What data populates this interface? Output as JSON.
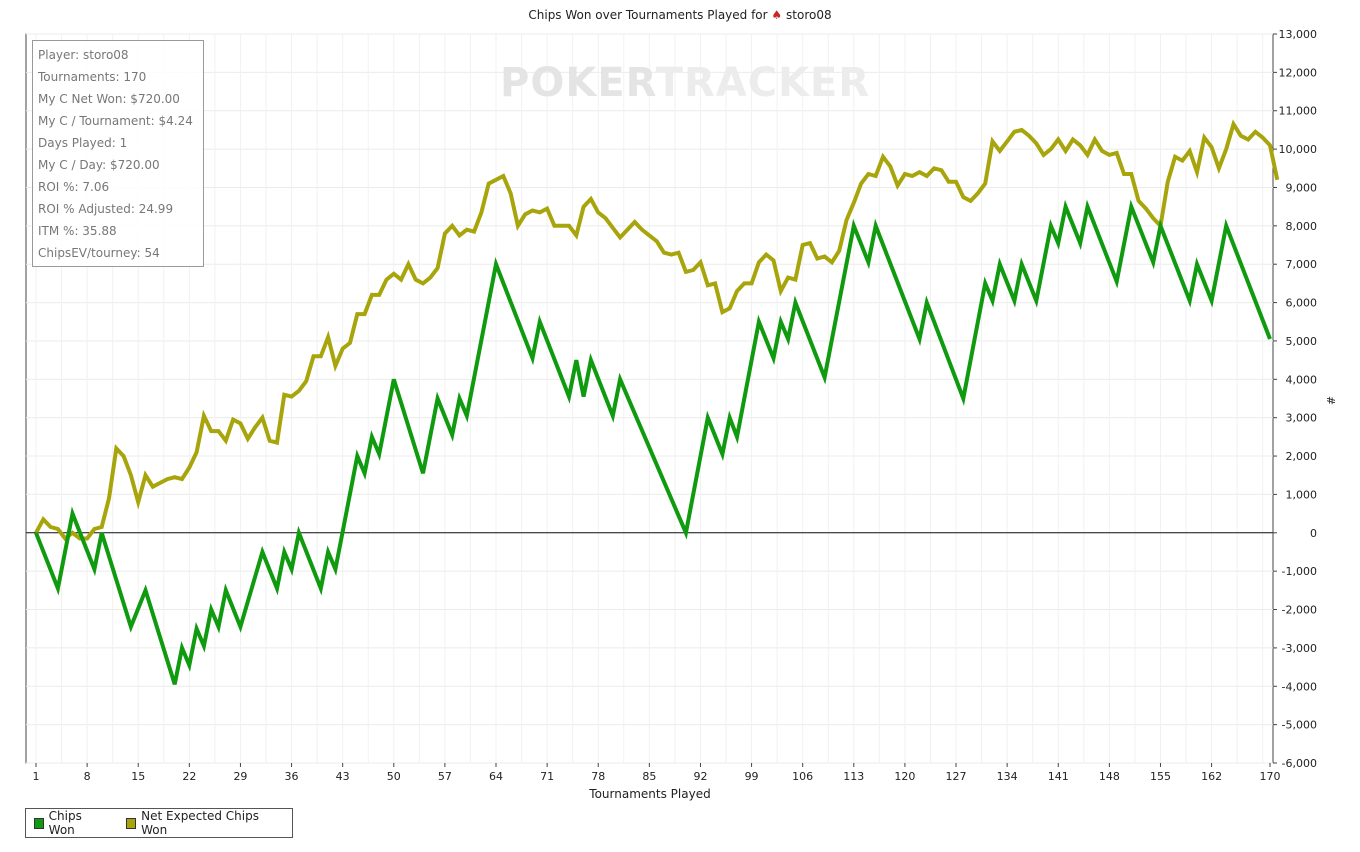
{
  "title": {
    "prefix": "Chips Won over Tournaments Played for",
    "player": "storo08"
  },
  "watermark": {
    "brand_part1": "POKER",
    "brand_part2": "TRACKER"
  },
  "stats": [
    "Player: storo08",
    "Tournaments: 170",
    "My C Net Won: $720.00",
    "My C / Tournament: $4.24",
    "Days Played: 1",
    "My C / Day: $720.00",
    "ROI %: 7.06",
    "ROI % Adjusted: 24.99",
    "ITM %: 35.88",
    "ChipsEV/tourney: 54"
  ],
  "legend": [
    {
      "name": "Chips Won",
      "color": "#0f9a0f"
    },
    {
      "name": "Net Expected Chips Won",
      "color": "#a8a50c"
    }
  ],
  "chart_data": {
    "type": "line",
    "xlabel": "Tournaments Played",
    "ylabel": "#",
    "xlim": [
      1,
      170
    ],
    "ylim": [
      -6000,
      13000
    ],
    "x_ticks": [
      1,
      8,
      15,
      22,
      29,
      36,
      43,
      50,
      57,
      64,
      71,
      78,
      85,
      92,
      99,
      106,
      113,
      120,
      127,
      134,
      141,
      148,
      155,
      162,
      170
    ],
    "y_ticks": [
      -6000,
      -5000,
      -4000,
      -3000,
      -2000,
      -1000,
      0,
      1000,
      2000,
      3000,
      4000,
      5000,
      6000,
      7000,
      8000,
      9000,
      10000,
      11000,
      12000,
      13000
    ],
    "y_tick_labels": [
      "-6,000",
      "-5,000",
      "-4,000",
      "-3,000",
      "-2,000",
      "-1,000",
      "0",
      "1,000",
      "2,000",
      "3,000",
      "4,000",
      "5,000",
      "6,000",
      "7,000",
      "8,000",
      "9,000",
      "10,000",
      "11,000",
      "12,000",
      "13,000"
    ],
    "grid": true,
    "legend_position": "bottom-left",
    "series": [
      {
        "name": "Chips Won",
        "color": "#0f9a0f",
        "points": [
          [
            1,
            0
          ],
          [
            4,
            -1450
          ],
          [
            6,
            500
          ],
          [
            9,
            -950
          ],
          [
            10,
            0
          ],
          [
            14,
            -2450
          ],
          [
            16,
            -1500
          ],
          [
            20,
            -3950
          ],
          [
            21,
            -3000
          ],
          [
            22,
            -3450
          ],
          [
            23,
            -2500
          ],
          [
            24,
            -2950
          ],
          [
            25,
            -2000
          ],
          [
            26,
            -2450
          ],
          [
            27,
            -1500
          ],
          [
            29,
            -2450
          ],
          [
            32,
            -500
          ],
          [
            34,
            -1450
          ],
          [
            35,
            -500
          ],
          [
            36,
            -950
          ],
          [
            37,
            0
          ],
          [
            40,
            -1450
          ],
          [
            41,
            -500
          ],
          [
            42,
            -950
          ],
          [
            45,
            2000
          ],
          [
            46,
            1550
          ],
          [
            47,
            2500
          ],
          [
            48,
            2050
          ],
          [
            50,
            4000
          ],
          [
            54,
            1550
          ],
          [
            56,
            3500
          ],
          [
            58,
            2550
          ],
          [
            59,
            3500
          ],
          [
            60,
            3050
          ],
          [
            64,
            7000
          ],
          [
            69,
            4550
          ],
          [
            70,
            5500
          ],
          [
            74,
            3550
          ],
          [
            75,
            4500
          ],
          [
            76,
            3550
          ],
          [
            77,
            4500
          ],
          [
            80,
            3050
          ],
          [
            81,
            4000
          ],
          [
            90,
            0
          ],
          [
            93,
            3000
          ],
          [
            95,
            2050
          ],
          [
            96,
            3000
          ],
          [
            97,
            2500
          ],
          [
            100,
            5500
          ],
          [
            102,
            4550
          ],
          [
            103,
            5500
          ],
          [
            104,
            5050
          ],
          [
            105,
            6000
          ],
          [
            109,
            4050
          ],
          [
            113,
            8000
          ],
          [
            115,
            7050
          ],
          [
            116,
            8000
          ],
          [
            122,
            5050
          ],
          [
            123,
            6000
          ],
          [
            128,
            3500
          ],
          [
            131,
            6500
          ],
          [
            132,
            6050
          ],
          [
            133,
            7000
          ],
          [
            135,
            6050
          ],
          [
            136,
            7000
          ],
          [
            138,
            6050
          ],
          [
            140,
            8000
          ],
          [
            141,
            7550
          ],
          [
            142,
            8500
          ],
          [
            144,
            7550
          ],
          [
            145,
            8500
          ],
          [
            149,
            6550
          ],
          [
            151,
            8500
          ],
          [
            154,
            7050
          ],
          [
            155,
            8000
          ],
          [
            159,
            6050
          ],
          [
            160,
            7000
          ],
          [
            162,
            6050
          ],
          [
            164,
            8000
          ],
          [
            170,
            5050
          ]
        ]
      },
      {
        "name": "Net Expected Chips Won",
        "color": "#a8a50c",
        "points": [
          [
            1,
            0
          ],
          [
            2,
            350
          ],
          [
            3,
            150
          ],
          [
            4,
            100
          ],
          [
            5,
            -150
          ],
          [
            6,
            0
          ],
          [
            7,
            -150
          ],
          [
            8,
            -150
          ],
          [
            9,
            100
          ],
          [
            10,
            150
          ],
          [
            11,
            900
          ],
          [
            12,
            2200
          ],
          [
            13,
            2000
          ],
          [
            14,
            1500
          ],
          [
            15,
            800
          ],
          [
            16,
            1500
          ],
          [
            17,
            1200
          ],
          [
            18,
            1300
          ],
          [
            19,
            1400
          ],
          [
            20,
            1450
          ],
          [
            21,
            1400
          ],
          [
            22,
            1700
          ],
          [
            23,
            2100
          ],
          [
            24,
            3050
          ],
          [
            25,
            2650
          ],
          [
            26,
            2650
          ],
          [
            27,
            2400
          ],
          [
            28,
            2950
          ],
          [
            29,
            2850
          ],
          [
            30,
            2450
          ],
          [
            31,
            2750
          ],
          [
            32,
            3000
          ],
          [
            33,
            2400
          ],
          [
            34,
            2350
          ],
          [
            35,
            3600
          ],
          [
            36,
            3550
          ],
          [
            37,
            3700
          ],
          [
            38,
            3950
          ],
          [
            39,
            4600
          ],
          [
            40,
            4600
          ],
          [
            41,
            5100
          ],
          [
            42,
            4350
          ],
          [
            43,
            4800
          ],
          [
            44,
            4950
          ],
          [
            45,
            5700
          ],
          [
            46,
            5700
          ],
          [
            47,
            6200
          ],
          [
            48,
            6200
          ],
          [
            49,
            6600
          ],
          [
            50,
            6750
          ],
          [
            51,
            6600
          ],
          [
            52,
            7000
          ],
          [
            53,
            6600
          ],
          [
            54,
            6500
          ],
          [
            55,
            6650
          ],
          [
            56,
            6900
          ],
          [
            57,
            7800
          ],
          [
            58,
            8000
          ],
          [
            59,
            7750
          ],
          [
            60,
            7900
          ],
          [
            61,
            7850
          ],
          [
            62,
            8350
          ],
          [
            63,
            9100
          ],
          [
            64,
            9200
          ],
          [
            65,
            9300
          ],
          [
            66,
            8850
          ],
          [
            67,
            8000
          ],
          [
            68,
            8300
          ],
          [
            69,
            8400
          ],
          [
            70,
            8350
          ],
          [
            71,
            8450
          ],
          [
            72,
            8000
          ],
          [
            73,
            8000
          ],
          [
            74,
            8000
          ],
          [
            75,
            7750
          ],
          [
            76,
            8500
          ],
          [
            77,
            8700
          ],
          [
            78,
            8350
          ],
          [
            79,
            8200
          ],
          [
            80,
            7950
          ],
          [
            81,
            7700
          ],
          [
            82,
            7900
          ],
          [
            83,
            8100
          ],
          [
            84,
            7900
          ],
          [
            85,
            7750
          ],
          [
            86,
            7600
          ],
          [
            87,
            7300
          ],
          [
            88,
            7250
          ],
          [
            89,
            7300
          ],
          [
            90,
            6800
          ],
          [
            91,
            6850
          ],
          [
            92,
            7050
          ],
          [
            93,
            6450
          ],
          [
            94,
            6500
          ],
          [
            95,
            5750
          ],
          [
            96,
            5850
          ],
          [
            97,
            6300
          ],
          [
            98,
            6500
          ],
          [
            99,
            6500
          ],
          [
            100,
            7050
          ],
          [
            101,
            7250
          ],
          [
            102,
            7100
          ],
          [
            103,
            6300
          ],
          [
            104,
            6650
          ],
          [
            105,
            6600
          ],
          [
            106,
            7500
          ],
          [
            107,
            7550
          ],
          [
            108,
            7150
          ],
          [
            109,
            7200
          ],
          [
            110,
            7050
          ],
          [
            111,
            7350
          ],
          [
            112,
            8150
          ],
          [
            113,
            8600
          ],
          [
            114,
            9100
          ],
          [
            115,
            9350
          ],
          [
            116,
            9300
          ],
          [
            117,
            9800
          ],
          [
            118,
            9550
          ],
          [
            119,
            9050
          ],
          [
            120,
            9350
          ],
          [
            121,
            9300
          ],
          [
            122,
            9400
          ],
          [
            123,
            9300
          ],
          [
            124,
            9500
          ],
          [
            125,
            9450
          ],
          [
            126,
            9150
          ],
          [
            127,
            9150
          ],
          [
            128,
            8750
          ],
          [
            129,
            8650
          ],
          [
            130,
            8850
          ],
          [
            131,
            9100
          ],
          [
            132,
            10200
          ],
          [
            133,
            9950
          ],
          [
            134,
            10200
          ],
          [
            135,
            10450
          ],
          [
            136,
            10500
          ],
          [
            137,
            10350
          ],
          [
            138,
            10150
          ],
          [
            139,
            9850
          ],
          [
            140,
            10000
          ],
          [
            141,
            10250
          ],
          [
            142,
            9950
          ],
          [
            143,
            10250
          ],
          [
            144,
            10100
          ],
          [
            145,
            9850
          ],
          [
            146,
            10250
          ],
          [
            147,
            9950
          ],
          [
            148,
            9850
          ],
          [
            149,
            9900
          ],
          [
            150,
            9350
          ],
          [
            151,
            9350
          ],
          [
            152,
            8650
          ],
          [
            153,
            8450
          ],
          [
            154,
            8200
          ],
          [
            155,
            8000
          ],
          [
            156,
            9150
          ],
          [
            157,
            9800
          ],
          [
            158,
            9700
          ],
          [
            159,
            9950
          ],
          [
            160,
            9400
          ],
          [
            161,
            10300
          ],
          [
            162,
            10050
          ],
          [
            163,
            9500
          ],
          [
            164,
            10000
          ],
          [
            165,
            10650
          ],
          [
            166,
            10350
          ],
          [
            167,
            10250
          ],
          [
            168,
            10450
          ],
          [
            169,
            10300
          ],
          [
            170,
            10100
          ],
          [
            171,
            9200
          ]
        ]
      }
    ]
  }
}
